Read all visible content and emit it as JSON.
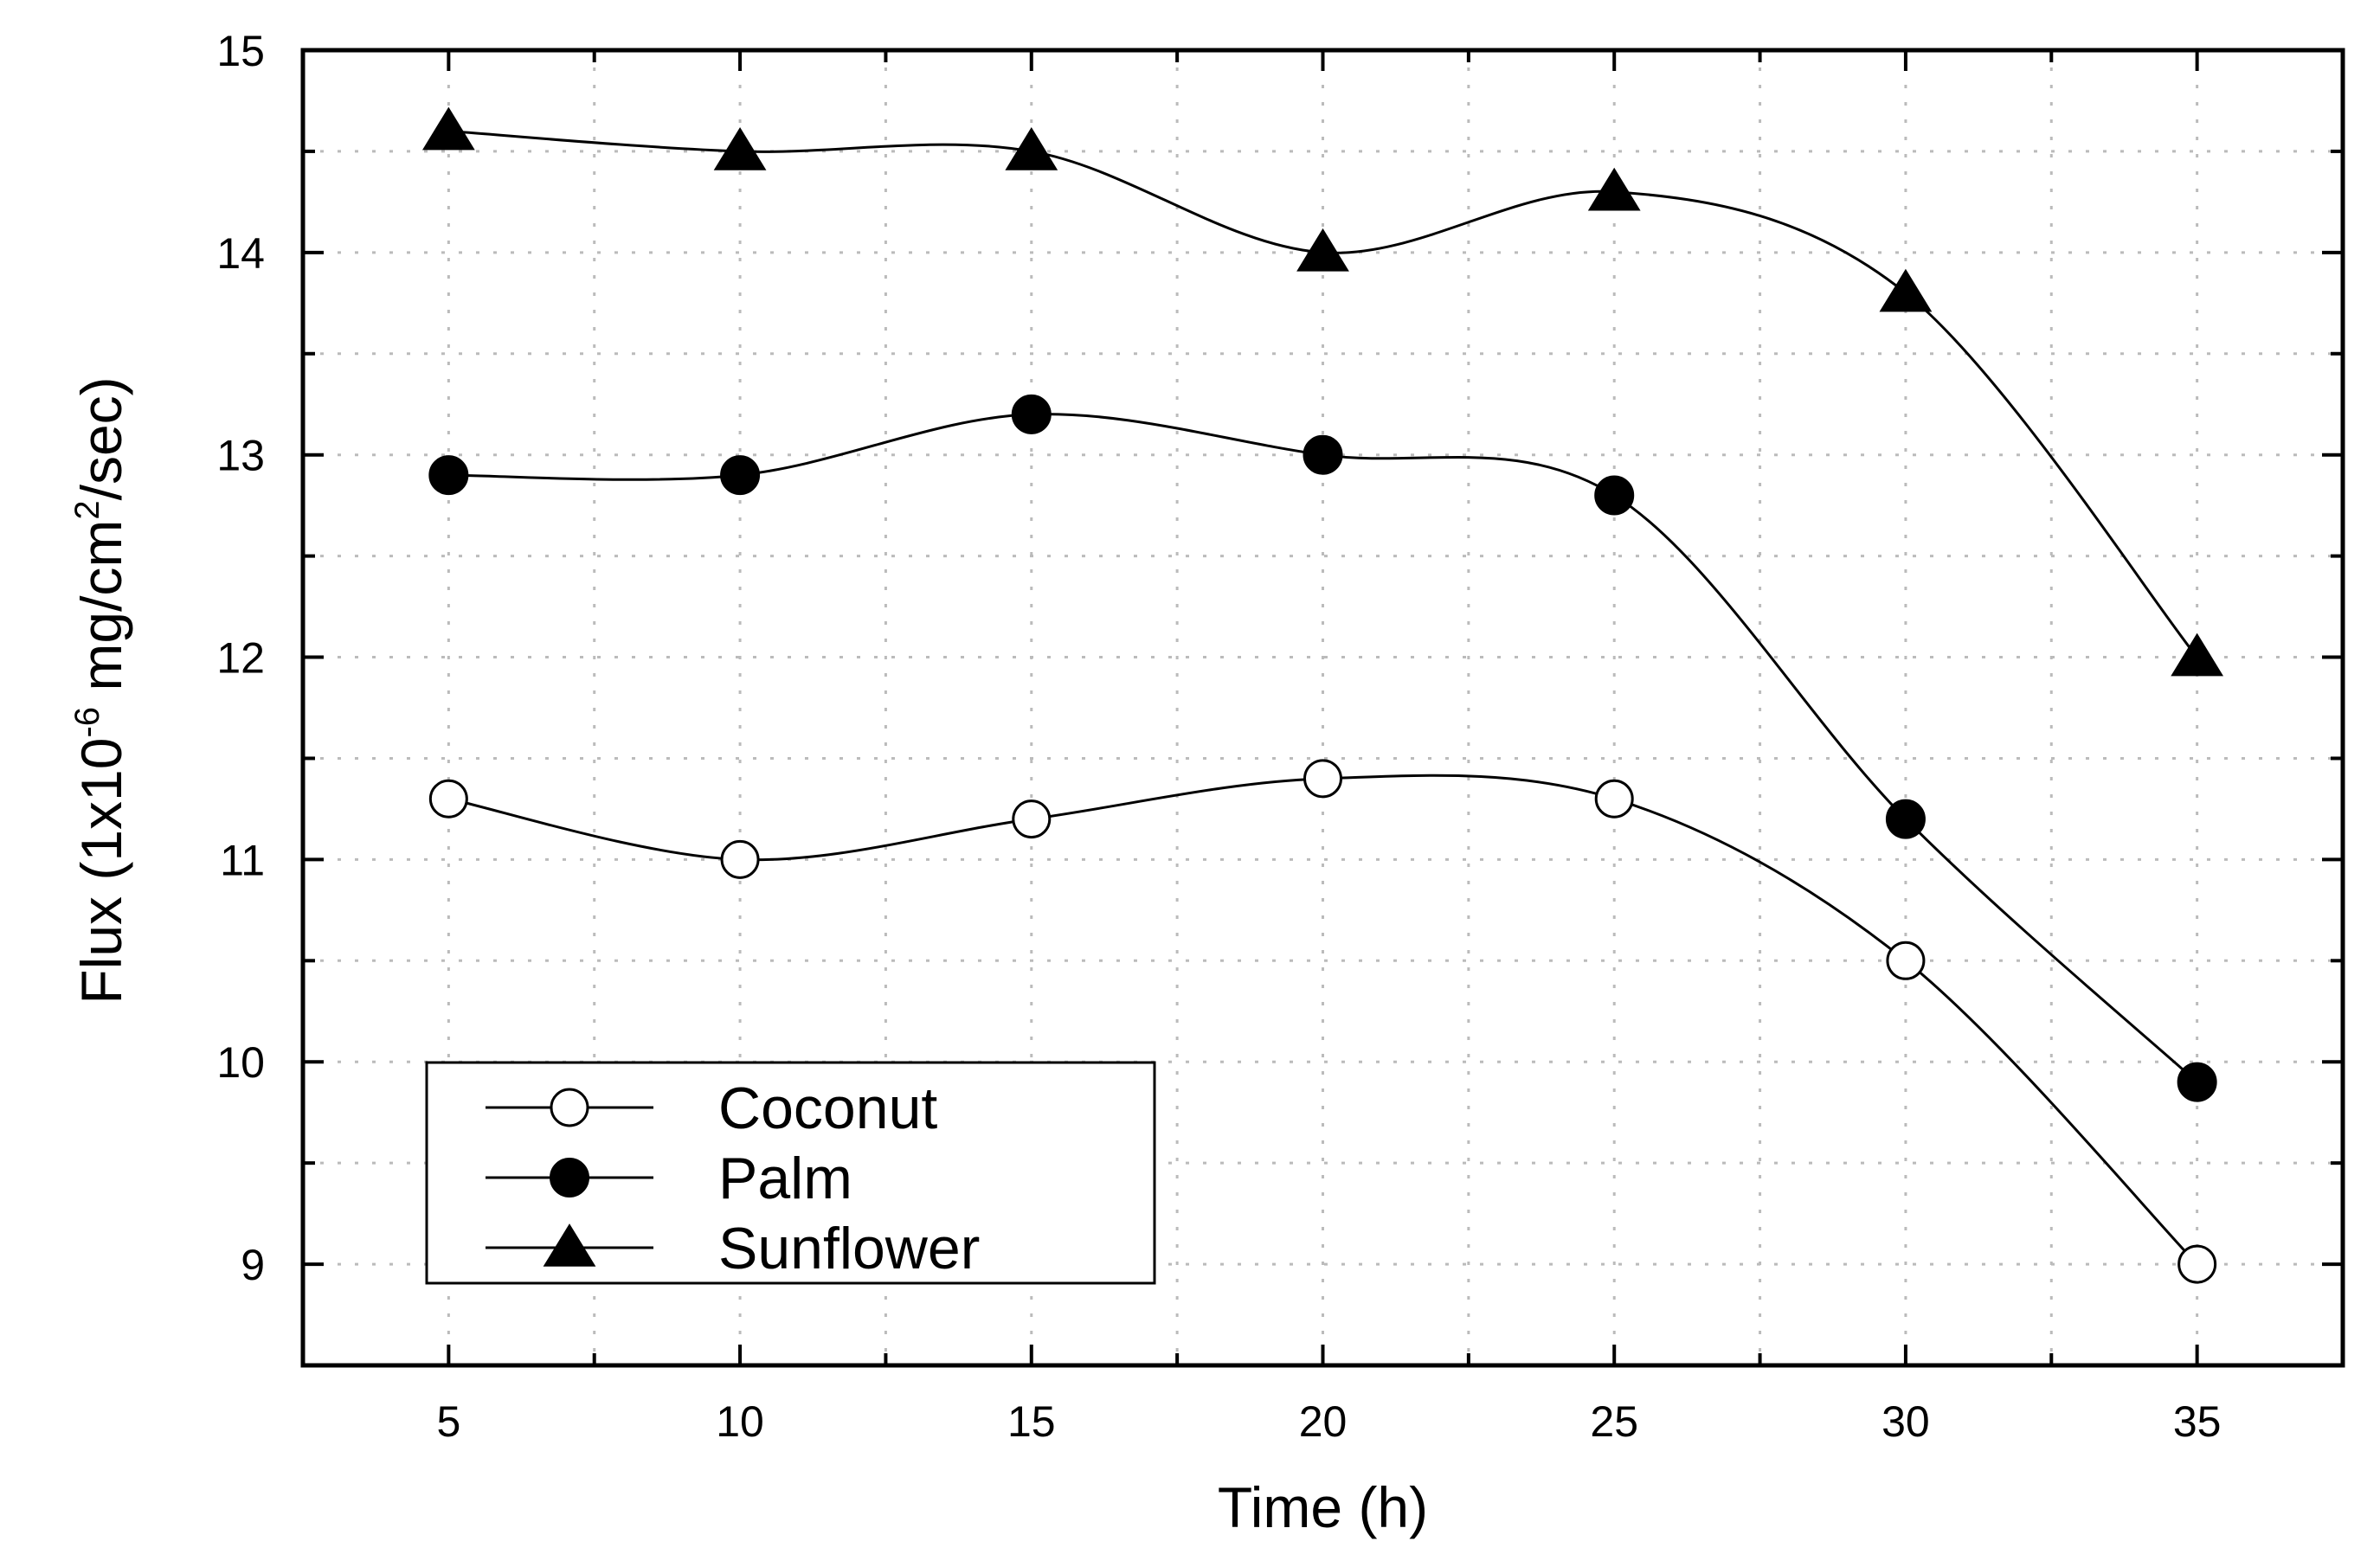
{
  "chart_data": {
    "type": "line",
    "title": "",
    "xlabel": "Time (h)",
    "ylabel": {
      "prefix": "Flux (1x10",
      "exp1": "-6",
      "mid": " mg/cm",
      "exp2": "2",
      "suffix": "/sec)"
    },
    "xlim": [
      2.5,
      37.5
    ],
    "ylim": [
      8.5,
      15
    ],
    "xticks": [
      5,
      10,
      15,
      20,
      25,
      30,
      35
    ],
    "yticks": [
      9,
      10,
      11,
      12,
      13,
      14,
      15
    ],
    "grid": true,
    "legend_position": "bottom-left",
    "x": [
      5,
      10,
      15,
      20,
      25,
      30,
      35
    ],
    "series": [
      {
        "name": "Coconut",
        "marker": "open-circle",
        "values": [
          11.3,
          11.0,
          11.2,
          11.4,
          11.3,
          10.5,
          9.0
        ]
      },
      {
        "name": "Palm",
        "marker": "filled-circle",
        "values": [
          12.9,
          12.9,
          13.2,
          13.0,
          12.8,
          11.2,
          9.9
        ]
      },
      {
        "name": "Sunflower",
        "marker": "filled-triangle",
        "values": [
          14.6,
          14.5,
          14.5,
          14.0,
          14.3,
          13.8,
          12.0
        ]
      }
    ],
    "colors": {
      "line": "#000000",
      "grid": "#bbbbbb",
      "background": "#ffffff"
    }
  }
}
